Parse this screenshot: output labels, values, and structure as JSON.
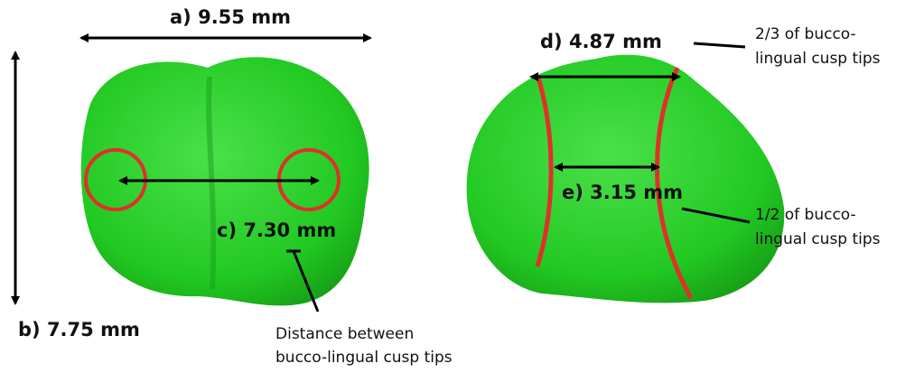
{
  "measurements": {
    "a": "a) 9.55 mm",
    "b": "b) 7.75 mm",
    "c": "c) 7.30 mm",
    "d": "d) 4.87 mm",
    "e": "e) 3.15 mm"
  },
  "annotations": {
    "cusp_distance": [
      "Distance between",
      "bucco-lingual cusp tips"
    ],
    "two_thirds": [
      "2/3 of bucco-",
      "lingual cusp tips"
    ],
    "one_half": [
      "1/2 of bucco-",
      "lingual cusp tips"
    ]
  }
}
